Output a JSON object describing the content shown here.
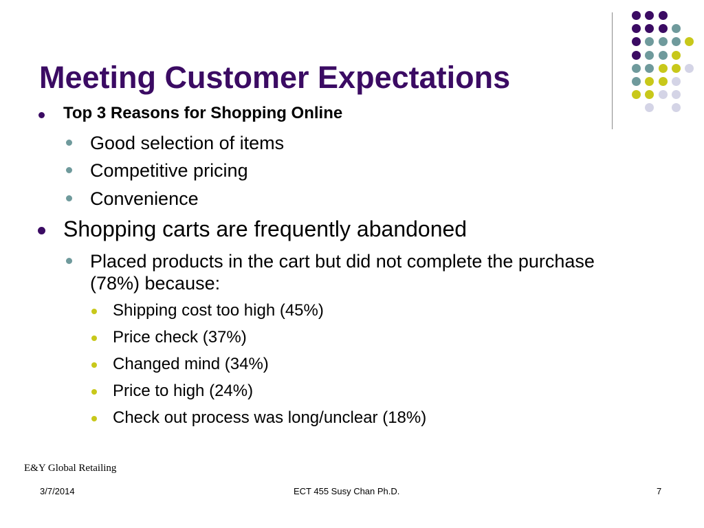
{
  "slide": {
    "title": "Meeting Customer Expectations",
    "bullets": [
      {
        "level": 1,
        "text": "Top 3 Reasons for Shopping Online",
        "bold": true
      },
      {
        "level": 2,
        "text": "Good selection of items"
      },
      {
        "level": 2,
        "text": "Competitive pricing"
      },
      {
        "level": 2,
        "text": "Convenience"
      },
      {
        "level": 1,
        "text": "Shopping carts are frequently abandoned"
      },
      {
        "level": 2,
        "text": "Placed products in the cart but did not complete the purchase (78%) because:"
      },
      {
        "level": 3,
        "text": "Shipping cost too high (45%)"
      },
      {
        "level": 3,
        "text": "Price check (37%)"
      },
      {
        "level": 3,
        "text": "Changed mind (34%)"
      },
      {
        "level": 3,
        "text": "Price to high (24%)"
      },
      {
        "level": 3,
        "text": "Check out process was long/unclear (18%)"
      }
    ],
    "source": "E&Y Global Retailing"
  },
  "footer": {
    "date": "3/7/2014",
    "course": "ECT 455  Susy Chan Ph.D.",
    "page_number": "7"
  },
  "colors": {
    "title": "#3b0b63",
    "purple": "#3b0b63",
    "teal": "#6f9a9c",
    "lime": "#c8c81a",
    "lavender": "#d4d4e6",
    "level1_bullet": "#3b0b63",
    "level2_bullet": "#6f9a9c",
    "level3_bullet": "#c8c81a",
    "divider": "#8a8a8a"
  },
  "decoration": {
    "dot_grid": [
      [
        null,
        "purple",
        "purple",
        "purple",
        null
      ],
      [
        null,
        "purple",
        "purple",
        "purple",
        "teal"
      ],
      [
        null,
        "purple",
        "teal",
        "teal",
        "teal",
        "lime"
      ],
      [
        null,
        "purple",
        "teal",
        "teal",
        "lime"
      ],
      [
        null,
        "teal",
        "teal",
        "lime",
        "lime",
        "lavender"
      ],
      [
        null,
        "teal",
        "lime",
        "lime",
        "lavender"
      ],
      [
        null,
        "lime",
        "lime",
        "lavender",
        "lavender"
      ],
      [
        null,
        null,
        "lavender",
        null,
        "lavender"
      ]
    ]
  }
}
